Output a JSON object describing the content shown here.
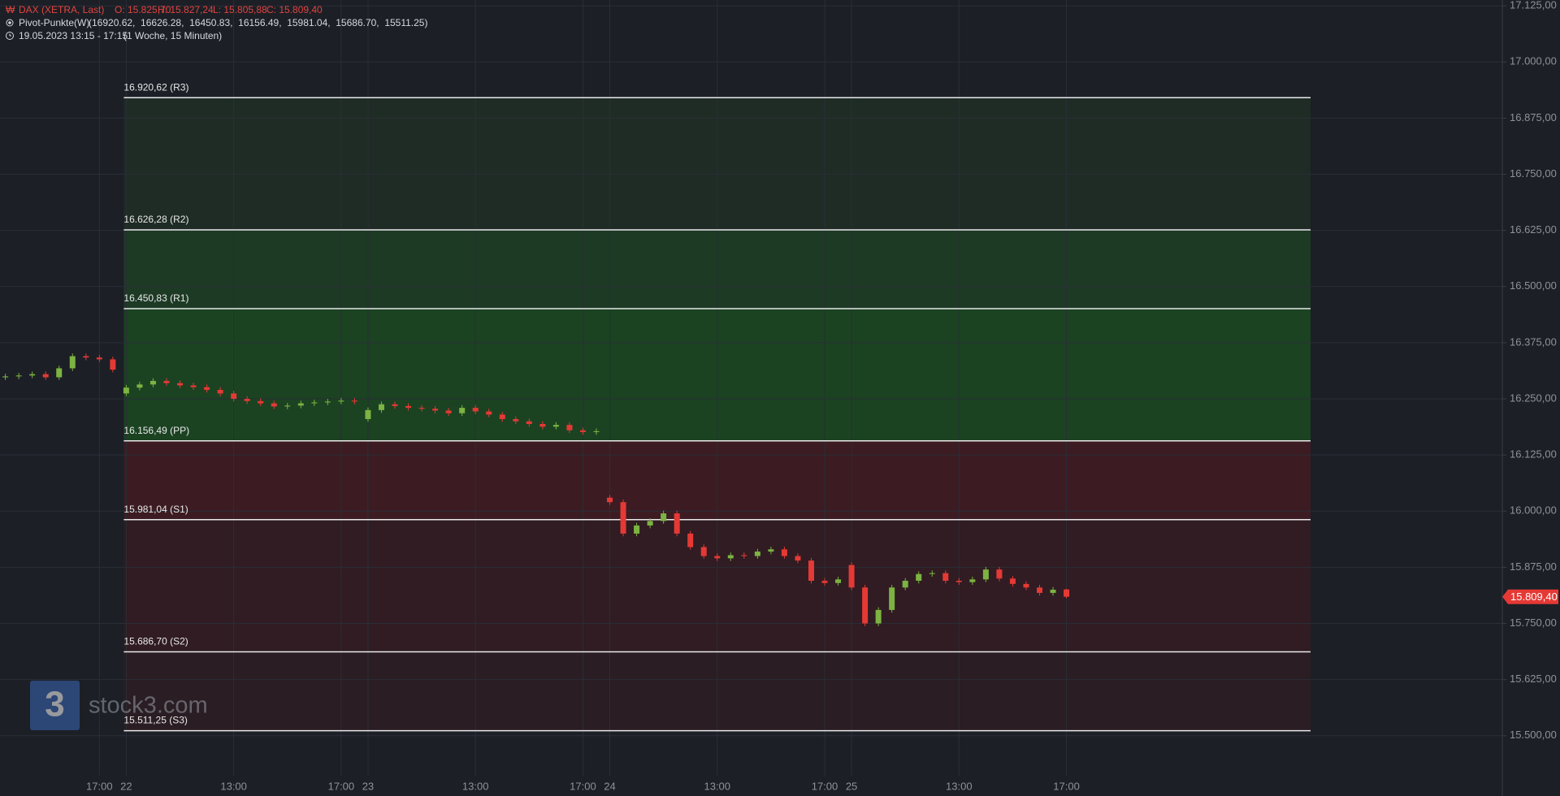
{
  "header": {
    "symbol": "DAX (XETRA, Last)",
    "o": "O: 15.825,70",
    "h": "H: 15.827,24",
    "l": "L: 15.805,88",
    "c": "C: 15.809,40",
    "indicator": "Pivot-Punkte(W)",
    "indicator_values": "(16920.62,  16626.28,  16450.83,  16156.49,  15981.04,  15686.70,  15511.25)",
    "range": "19.05.2023 13:15 - 17:15",
    "period": "(1 Woche, 15 Minuten)"
  },
  "watermark": {
    "logo": "3",
    "text": "stock3.com"
  },
  "chart_data": {
    "type": "candlestick",
    "x": [
      -18,
      -16,
      -14,
      -12,
      -10,
      -8,
      -6,
      -4,
      -2,
      0,
      2,
      4,
      6,
      8,
      10,
      12,
      14,
      16,
      18,
      20,
      22,
      24,
      26,
      28,
      30,
      32,
      34,
      36,
      38,
      40,
      42,
      44,
      46,
      48,
      50,
      52,
      54,
      56,
      58,
      60,
      62,
      64,
      66,
      68,
      70,
      72,
      74,
      76,
      78,
      80,
      82,
      84,
      86,
      88,
      90,
      92,
      94,
      96,
      98,
      100,
      102,
      104,
      106,
      108,
      110,
      112,
      114,
      116,
      118,
      120,
      122,
      124,
      126,
      128,
      130,
      132,
      134,
      136,
      138,
      140
    ],
    "open": [
      16298,
      16300,
      16302,
      16305,
      16298,
      16318,
      16345,
      16342,
      16338,
      16262,
      16275,
      16282,
      16290,
      16285,
      16280,
      16276,
      16270,
      16262,
      16250,
      16245,
      16240,
      16233,
      16235,
      16240,
      16242,
      16244,
      16246,
      16205,
      16225,
      16238,
      16234,
      16230,
      16228,
      16224,
      16218,
      16230,
      16222,
      16215,
      16205,
      16200,
      16194,
      16188,
      16192,
      16180,
      16176,
      16030,
      16020,
      15950,
      15968,
      15978,
      15995,
      15950,
      15920,
      15900,
      15895,
      15902,
      15900,
      15910,
      15915,
      15900,
      15890,
      15845,
      15840,
      15880,
      15830,
      15750,
      15780,
      15830,
      15845,
      15860,
      15862,
      15845,
      15842,
      15848,
      15870,
      15850,
      15838,
      15830,
      15818,
      15825.7
    ],
    "high": [
      16306,
      16308,
      16311,
      16311,
      16324,
      16351,
      16351,
      16348,
      16344,
      16281,
      16288,
      16296,
      16296,
      16291,
      16286,
      16282,
      16276,
      16268,
      16256,
      16251,
      16246,
      16241,
      16246,
      16248,
      16250,
      16252,
      16252,
      16231,
      16244,
      16244,
      16240,
      16236,
      16234,
      16230,
      16236,
      16236,
      16228,
      16221,
      16211,
      16206,
      16200,
      16198,
      16198,
      16186,
      16184,
      16036,
      16026,
      15974,
      15984,
      16001,
      16001,
      15956,
      15926,
      15906,
      15908,
      15908,
      15916,
      15921,
      15921,
      15906,
      15896,
      15851,
      15854,
      15886,
      15836,
      15786,
      15836,
      15851,
      15866,
      15868,
      15868,
      15851,
      15854,
      15876,
      15876,
      15856,
      15844,
      15836,
      15831,
      15827.24
    ],
    "low": [
      16292,
      16294,
      16296,
      16292,
      16292,
      16312,
      16336,
      16332,
      16309,
      16256,
      16269,
      16276,
      16279,
      16274,
      16270,
      16264,
      16256,
      16244,
      16239,
      16234,
      16227,
      16227,
      16229,
      16234,
      16236,
      16238,
      16238,
      16199,
      16219,
      16228,
      16224,
      16222,
      16218,
      16212,
      16212,
      16216,
      16209,
      16199,
      16194,
      16188,
      16182,
      16182,
      16174,
      16170,
      16170,
      16014,
      15944,
      15944,
      15962,
      15972,
      15944,
      15914,
      15894,
      15889,
      15889,
      15894,
      15894,
      15904,
      15894,
      15884,
      15839,
      15834,
      15834,
      15824,
      15744,
      15744,
      15774,
      15824,
      15839,
      15854,
      15839,
      15836,
      15836,
      15842,
      15844,
      15832,
      15824,
      15812,
      15812,
      15805.88
    ],
    "close": [
      16300,
      16302,
      16305,
      16298,
      16318,
      16345,
      16342,
      16338,
      16315,
      16275,
      16282,
      16290,
      16285,
      16280,
      16276,
      16270,
      16262,
      16250,
      16245,
      16240,
      16233,
      16235,
      16240,
      16242,
      16244,
      16246,
      16244,
      16225,
      16238,
      16234,
      16230,
      16228,
      16224,
      16218,
      16230,
      16222,
      16215,
      16205,
      16200,
      16194,
      16188,
      16192,
      16180,
      16176,
      16178,
      16020,
      15950,
      15968,
      15978,
      15995,
      15950,
      15920,
      15900,
      15895,
      15902,
      15900,
      15910,
      15915,
      15900,
      15890,
      15845,
      15840,
      15848,
      15830,
      15750,
      15780,
      15830,
      15845,
      15860,
      15862,
      15845,
      15842,
      15848,
      15870,
      15850,
      15838,
      15830,
      15818,
      15825,
      15809.4
    ],
    "up_color": "#7cb342",
    "down_color": "#e53935",
    "last_label": "15.809,40",
    "pivots": [
      {
        "value": 16920.62,
        "label": "16.920,62 (R3)"
      },
      {
        "value": 16626.28,
        "label": "16.626,28 (R2)"
      },
      {
        "value": 16450.83,
        "label": "16.450,83 (R1)"
      },
      {
        "value": 16156.49,
        "label": "16.156,49 (PP)"
      },
      {
        "value": 15981.04,
        "label": "15.981,04 (S1)"
      },
      {
        "value": 15686.7,
        "label": "15.686,70 (S2)"
      },
      {
        "value": 15511.25,
        "label": "15.511,25 (S3)"
      }
    ],
    "band_colors": [
      "#1f2c25",
      "#1d3a25",
      "#1b4322",
      "#3c1c22",
      "#301c22",
      "#2a1d23"
    ],
    "xlim": [
      -18.8,
      204.9
    ],
    "ylim": [
      15411,
      17138
    ],
    "xticks": [
      {
        "value": -4,
        "label": "17:00"
      },
      {
        "value": 0,
        "label": "22"
      },
      {
        "value": 16,
        "label": "13:00"
      },
      {
        "value": 32,
        "label": "17:00"
      },
      {
        "value": 36,
        "label": "23"
      },
      {
        "value": 52,
        "label": "13:00"
      },
      {
        "value": 68,
        "label": "17:00"
      },
      {
        "value": 72,
        "label": "24"
      },
      {
        "value": 88,
        "label": "13:00"
      },
      {
        "value": 104,
        "label": "17:00"
      },
      {
        "value": 108,
        "label": "25"
      },
      {
        "value": 124,
        "label": "13:00"
      },
      {
        "value": 140,
        "label": "17:00"
      }
    ],
    "yticks": [
      {
        "value": 17125,
        "label": "17.125,00"
      },
      {
        "value": 17000,
        "label": "17.000,00"
      },
      {
        "value": 16875,
        "label": "16.875,00"
      },
      {
        "value": 16750,
        "label": "16.750,00"
      },
      {
        "value": 16625,
        "label": "16.625,00"
      },
      {
        "value": 16500,
        "label": "16.500,00"
      },
      {
        "value": 16375,
        "label": "16.375,00"
      },
      {
        "value": 16250,
        "label": "16.250,00"
      },
      {
        "value": 16125,
        "label": "16.125,00"
      },
      {
        "value": 16000,
        "label": "16.000,00"
      },
      {
        "value": 15875,
        "label": "15.875,00"
      },
      {
        "value": 15750,
        "label": "15.750,00"
      },
      {
        "value": 15625,
        "label": "15.625,00"
      },
      {
        "value": 15500,
        "label": "15.500,00"
      }
    ],
    "grid": true
  }
}
